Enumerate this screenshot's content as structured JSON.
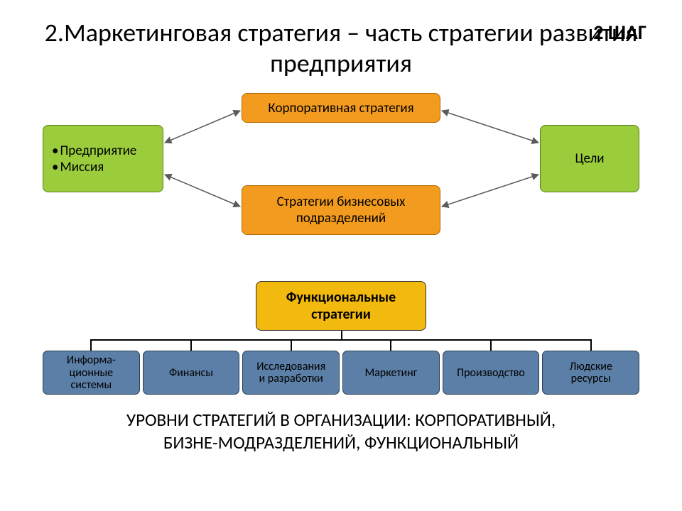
{
  "step_label": "2 ШАГ",
  "title": "2.Маркетинговая стратегия – часть стратегии развития предприятия",
  "diagram": {
    "left_box": {
      "line1": "Предприятие",
      "line2": "Миссия",
      "bg": "#9acc3c",
      "border": "#5a7f1f"
    },
    "top_box": {
      "label": "Корпоративная стратегия",
      "bg": "#f29b1f",
      "border": "#b36a00"
    },
    "bottom_box": {
      "line1": "Стратегии бизнесовых",
      "line2": "подразделений",
      "bg": "#f29b1f",
      "border": "#b36a00"
    },
    "right_box": {
      "label": "Цели",
      "bg": "#9acc3c",
      "border": "#5a7f1f"
    },
    "arrow_color": "#5a5a5a"
  },
  "tree": {
    "root": {
      "line1": "Функциональные",
      "line2": "стратегии",
      "bg": "#f2b90e",
      "border": "#333333"
    },
    "leaf_bg": "#5b7fa6",
    "leaf_border": "#2d3f52",
    "connector_color": "#000000",
    "leaves": [
      {
        "label": "Информа-\nционные\nсистемы"
      },
      {
        "label": "Финансы"
      },
      {
        "label": "Исследования\nи разработки"
      },
      {
        "label": "Маркетинг"
      },
      {
        "label": "Производство"
      },
      {
        "label": "Людские\nресурсы"
      }
    ]
  },
  "footer": {
    "line1": "УРОВНИ СТРАТЕГИЙ В ОРГАНИЗАЦИИ: КОРПОРАТИВНЫЙ,",
    "line2": "БИЗНЕ-МОДРАЗДЕЛЕНИЙ, ФУНКЦИОНАЛЬНЫЙ"
  }
}
